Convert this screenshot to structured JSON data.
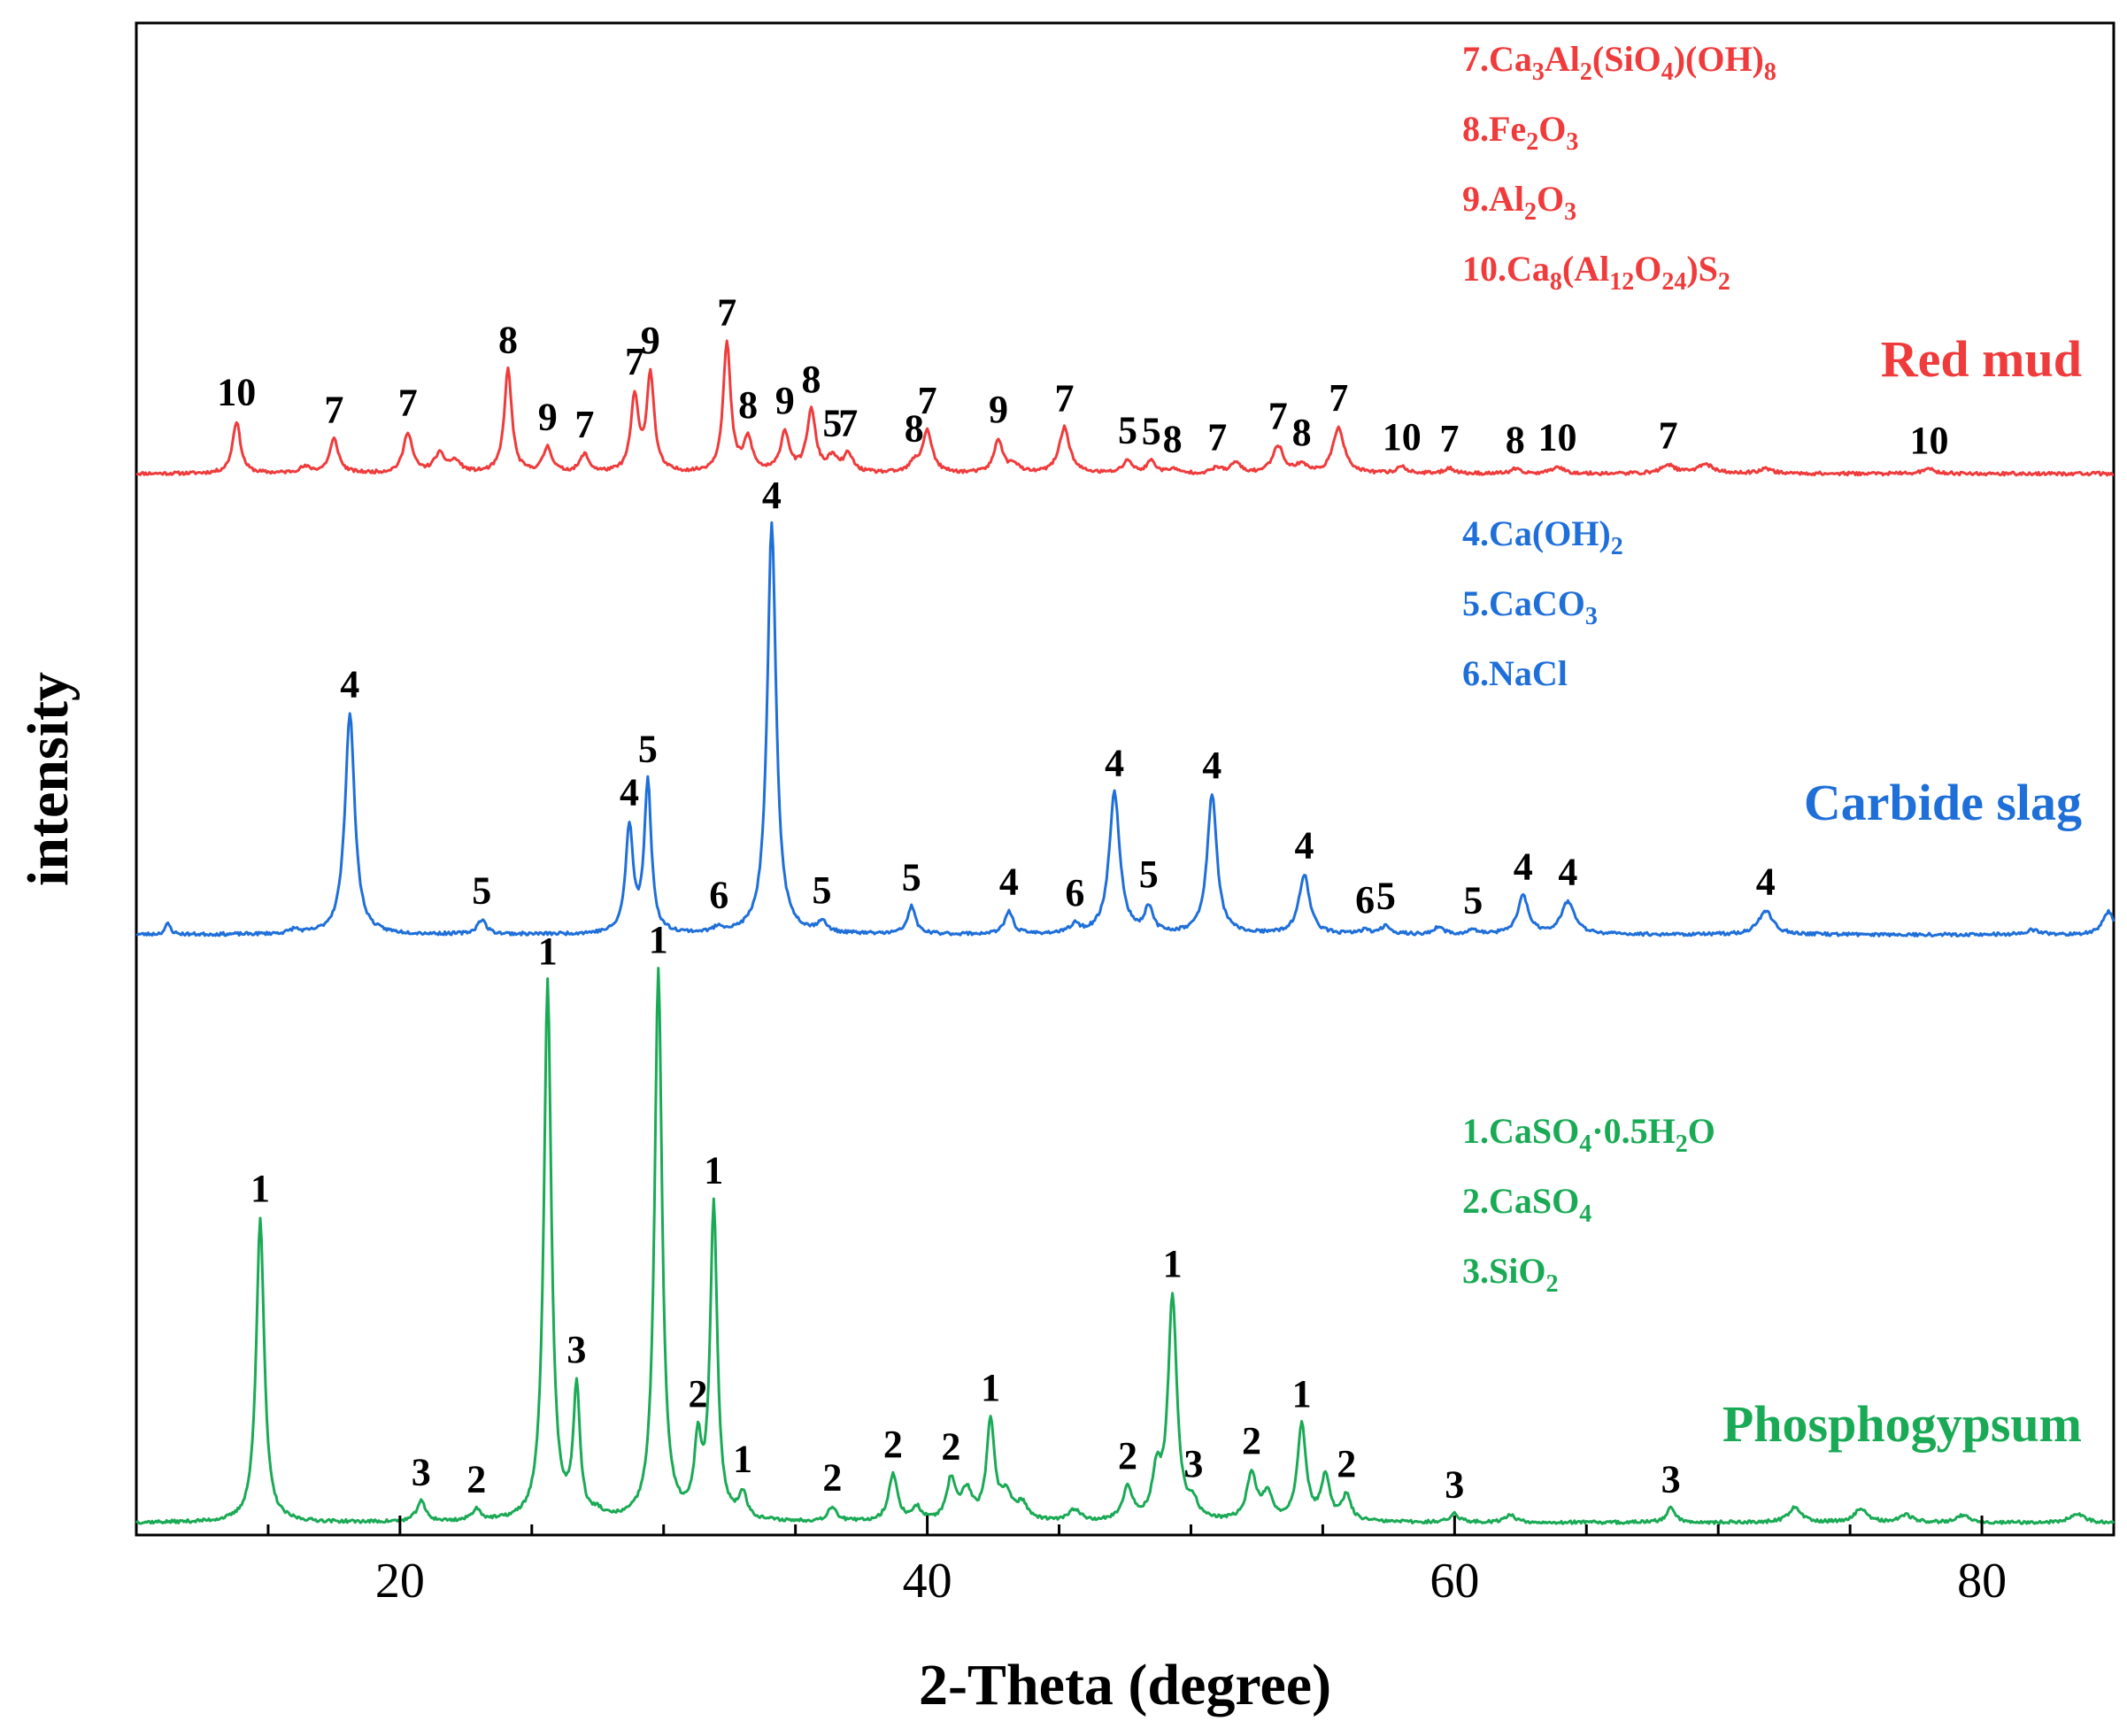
{
  "chart_data": {
    "type": "line",
    "xlabel": "2-Theta (degree)",
    "ylabel": "intensity",
    "xlim": [
      10,
      85
    ],
    "ylim": [
      0,
      2.0
    ],
    "x_ticks": [
      20,
      40,
      60,
      80
    ],
    "grid": false,
    "series": [
      {
        "name": "Red mud",
        "color": "#ef3b3b",
        "baseline": 1.445,
        "noise_seed": 11,
        "peaks": [
          {
            "x": 13.8,
            "h": 0.072,
            "w": 0.18,
            "label": "10"
          },
          {
            "x": 16.4,
            "h": 0.008,
            "w": 0.3
          },
          {
            "x": 17.5,
            "h": 0.047,
            "w": 0.2,
            "label": "7"
          },
          {
            "x": 20.3,
            "h": 0.056,
            "w": 0.2,
            "label": "7"
          },
          {
            "x": 21.5,
            "h": 0.025,
            "w": 0.25
          },
          {
            "x": 22.1,
            "h": 0.015,
            "w": 0.25
          },
          {
            "x": 24.1,
            "h": 0.143,
            "w": 0.17,
            "label": "8"
          },
          {
            "x": 25.6,
            "h": 0.035,
            "w": 0.2,
            "label": "9"
          },
          {
            "x": 27.0,
            "h": 0.025,
            "w": 0.2,
            "label": "7"
          },
          {
            "x": 28.9,
            "h": 0.103,
            "w": 0.17,
            "label": "7"
          },
          {
            "x": 29.5,
            "h": 0.135,
            "w": 0.17,
            "label": "9"
          },
          {
            "x": 32.4,
            "h": 0.178,
            "w": 0.17,
            "label": "7"
          },
          {
            "x": 33.2,
            "h": 0.045,
            "w": 0.2,
            "label": "8"
          },
          {
            "x": 34.6,
            "h": 0.055,
            "w": 0.2,
            "label": "9"
          },
          {
            "x": 35.6,
            "h": 0.085,
            "w": 0.2,
            "label": "8"
          },
          {
            "x": 36.4,
            "h": 0.02,
            "w": 0.2,
            "label": "5"
          },
          {
            "x": 37.0,
            "h": 0.025,
            "w": 0.22,
            "label": "7"
          },
          {
            "x": 39.5,
            "h": 0.012,
            "w": 0.2,
            "label": "8"
          },
          {
            "x": 40.0,
            "h": 0.058,
            "w": 0.22,
            "label": "7"
          },
          {
            "x": 42.7,
            "h": 0.046,
            "w": 0.2,
            "label": "9"
          },
          {
            "x": 43.3,
            "h": 0.012,
            "w": 0.2
          },
          {
            "x": 45.2,
            "h": 0.063,
            "w": 0.24,
            "label": "7"
          },
          {
            "x": 47.6,
            "h": 0.018,
            "w": 0.2,
            "label": "5"
          },
          {
            "x": 48.5,
            "h": 0.017,
            "w": 0.2,
            "label": "5"
          },
          {
            "x": 49.3,
            "h": 0.006,
            "w": 0.2,
            "label": "8"
          },
          {
            "x": 51.0,
            "h": 0.008,
            "w": 0.2,
            "label": "7"
          },
          {
            "x": 51.7,
            "h": 0.015,
            "w": 0.2
          },
          {
            "x": 53.3,
            "h": 0.038,
            "w": 0.25,
            "label": "7"
          },
          {
            "x": 54.2,
            "h": 0.012,
            "w": 0.22,
            "label": "8"
          },
          {
            "x": 55.6,
            "h": 0.064,
            "w": 0.25,
            "label": "7"
          },
          {
            "x": 58.0,
            "h": 0.01,
            "w": 0.2,
            "label": "10"
          },
          {
            "x": 59.8,
            "h": 0.008,
            "w": 0.2,
            "label": "7"
          },
          {
            "x": 62.3,
            "h": 0.006,
            "w": 0.2,
            "label": "8"
          },
          {
            "x": 63.9,
            "h": 0.01,
            "w": 0.25,
            "label": "10"
          },
          {
            "x": 68.1,
            "h": 0.012,
            "w": 0.3,
            "label": "7"
          },
          {
            "x": 69.5,
            "h": 0.013,
            "w": 0.35
          },
          {
            "x": 71.8,
            "h": 0.007,
            "w": 0.3
          },
          {
            "x": 78.0,
            "h": 0.006,
            "w": 0.3,
            "label": "10"
          }
        ]
      },
      {
        "name": "Carbide slag",
        "color": "#1f6fd9",
        "baseline": 0.81,
        "noise_seed": 23,
        "peaks": [
          {
            "x": 11.2,
            "h": 0.015,
            "w": 0.12
          },
          {
            "x": 16.0,
            "h": 0.006,
            "w": 0.2
          },
          {
            "x": 18.1,
            "h": 0.305,
            "w": 0.22,
            "label": "4"
          },
          {
            "x": 23.1,
            "h": 0.02,
            "w": 0.2,
            "label": "5"
          },
          {
            "x": 28.7,
            "h": 0.145,
            "w": 0.17,
            "label": "4"
          },
          {
            "x": 29.4,
            "h": 0.207,
            "w": 0.16,
            "label": "5"
          },
          {
            "x": 32.1,
            "h": 0.008,
            "w": 0.2,
            "label": "6"
          },
          {
            "x": 34.1,
            "h": 0.565,
            "w": 0.2,
            "label": "4"
          },
          {
            "x": 36.0,
            "h": 0.015,
            "w": 0.2,
            "label": "5"
          },
          {
            "x": 39.4,
            "h": 0.038,
            "w": 0.18,
            "label": "5"
          },
          {
            "x": 43.1,
            "h": 0.032,
            "w": 0.18,
            "label": "4"
          },
          {
            "x": 45.6,
            "h": 0.012,
            "w": 0.2,
            "label": "6"
          },
          {
            "x": 47.1,
            "h": 0.195,
            "w": 0.24,
            "label": "4"
          },
          {
            "x": 48.4,
            "h": 0.035,
            "w": 0.18,
            "label": "5"
          },
          {
            "x": 50.8,
            "h": 0.192,
            "w": 0.22,
            "label": "4"
          },
          {
            "x": 54.3,
            "h": 0.082,
            "w": 0.24,
            "label": "4"
          },
          {
            "x": 56.6,
            "h": 0.006,
            "w": 0.2,
            "label": "6"
          },
          {
            "x": 57.4,
            "h": 0.012,
            "w": 0.2,
            "label": "5"
          },
          {
            "x": 59.4,
            "h": 0.01,
            "w": 0.2
          },
          {
            "x": 60.7,
            "h": 0.006,
            "w": 0.2,
            "label": "5"
          },
          {
            "x": 62.6,
            "h": 0.052,
            "w": 0.25,
            "label": "4"
          },
          {
            "x": 64.3,
            "h": 0.045,
            "w": 0.3,
            "label": "4"
          },
          {
            "x": 71.8,
            "h": 0.033,
            "w": 0.32,
            "label": "4"
          },
          {
            "x": 81.9,
            "h": 0.006,
            "w": 0.3
          },
          {
            "x": 84.8,
            "h": 0.032,
            "w": 0.25
          }
        ]
      },
      {
        "name": "Phosphogypsum",
        "color": "#1aaa55",
        "baseline": 0.0,
        "noise_seed": 37,
        "peaks": [
          {
            "x": 14.7,
            "h": 0.42,
            "w": 0.18,
            "label": "1"
          },
          {
            "x": 20.8,
            "h": 0.028,
            "w": 0.2,
            "label": "3"
          },
          {
            "x": 22.9,
            "h": 0.016,
            "w": 0.2,
            "label": "2"
          },
          {
            "x": 25.6,
            "h": 0.742,
            "w": 0.17,
            "label": "1"
          },
          {
            "x": 26.7,
            "h": 0.178,
            "w": 0.15,
            "label": "3"
          },
          {
            "x": 27.5,
            "h": 0.008,
            "w": 0.2
          },
          {
            "x": 29.8,
            "h": 0.758,
            "w": 0.17,
            "label": "1"
          },
          {
            "x": 31.3,
            "h": 0.098,
            "w": 0.16,
            "label": "2"
          },
          {
            "x": 31.9,
            "h": 0.432,
            "w": 0.16,
            "label": "1"
          },
          {
            "x": 33.0,
            "h": 0.035,
            "w": 0.18,
            "label": "1"
          },
          {
            "x": 36.4,
            "h": 0.02,
            "w": 0.2,
            "label": "2"
          },
          {
            "x": 38.7,
            "h": 0.065,
            "w": 0.2,
            "label": "2"
          },
          {
            "x": 39.6,
            "h": 0.018,
            "w": 0.2
          },
          {
            "x": 40.9,
            "h": 0.055,
            "w": 0.2,
            "label": "2"
          },
          {
            "x": 41.5,
            "h": 0.04,
            "w": 0.25
          },
          {
            "x": 42.4,
            "h": 0.135,
            "w": 0.18,
            "label": "1"
          },
          {
            "x": 43.0,
            "h": 0.035,
            "w": 0.25
          },
          {
            "x": 43.6,
            "h": 0.022,
            "w": 0.25
          },
          {
            "x": 45.6,
            "h": 0.016,
            "w": 0.25
          },
          {
            "x": 47.6,
            "h": 0.045,
            "w": 0.22,
            "label": "2"
          },
          {
            "x": 48.7,
            "h": 0.06,
            "w": 0.2
          },
          {
            "x": 49.3,
            "h": 0.308,
            "w": 0.2,
            "label": "1"
          },
          {
            "x": 50.1,
            "h": 0.02,
            "w": 0.2,
            "label": "3"
          },
          {
            "x": 52.3,
            "h": 0.065,
            "w": 0.22,
            "label": "2"
          },
          {
            "x": 52.9,
            "h": 0.035,
            "w": 0.22
          },
          {
            "x": 54.2,
            "h": 0.132,
            "w": 0.2,
            "label": "1"
          },
          {
            "x": 55.1,
            "h": 0.06,
            "w": 0.2
          },
          {
            "x": 55.9,
            "h": 0.035,
            "w": 0.2,
            "label": "2"
          },
          {
            "x": 60.0,
            "h": 0.012,
            "w": 0.2,
            "label": "3"
          },
          {
            "x": 62.1,
            "h": 0.01,
            "w": 0.25
          },
          {
            "x": 68.2,
            "h": 0.02,
            "w": 0.2,
            "label": "3"
          },
          {
            "x": 72.9,
            "h": 0.02,
            "w": 0.3
          },
          {
            "x": 75.4,
            "h": 0.018,
            "w": 0.3
          },
          {
            "x": 77.1,
            "h": 0.01,
            "w": 0.3
          },
          {
            "x": 79.3,
            "h": 0.01,
            "w": 0.3
          },
          {
            "x": 83.6,
            "h": 0.013,
            "w": 0.3
          }
        ]
      }
    ],
    "legends": [
      {
        "series": "Red mud",
        "entries": [
          {
            "num": "7.",
            "parts": [
              [
                "Ca",
                ""
              ],
              [
                "3",
                "sub"
              ],
              [
                "Al",
                ""
              ],
              [
                "2",
                "sub"
              ],
              [
                "(SiO",
                ""
              ],
              [
                "4",
                "sub"
              ],
              [
                ")(OH)",
                ""
              ],
              [
                "8",
                "sub"
              ]
            ]
          },
          {
            "num": "8.",
            "parts": [
              [
                "Fe",
                ""
              ],
              [
                "2",
                "sub"
              ],
              [
                "O",
                ""
              ],
              [
                "3",
                "sub"
              ]
            ]
          },
          {
            "num": "9.",
            "parts": [
              [
                "Al",
                ""
              ],
              [
                "2",
                "sub"
              ],
              [
                "O",
                ""
              ],
              [
                "3",
                "sub"
              ]
            ]
          },
          {
            "num": "10.",
            "parts": [
              [
                "Ca",
                ""
              ],
              [
                "8",
                "sub"
              ],
              [
                "(Al",
                ""
              ],
              [
                "12",
                "sub"
              ],
              [
                "O",
                ""
              ],
              [
                "24",
                "sub"
              ],
              [
                ")S",
                ""
              ],
              [
                "2",
                "sub"
              ]
            ]
          }
        ]
      },
      {
        "series": "Carbide slag",
        "entries": [
          {
            "num": "4.",
            "parts": [
              [
                "Ca(OH)",
                ""
              ],
              [
                "2",
                "sub"
              ]
            ]
          },
          {
            "num": "5.",
            "parts": [
              [
                "CaCO",
                ""
              ],
              [
                "3",
                "sub"
              ]
            ]
          },
          {
            "num": "6.",
            "parts": [
              [
                "NaCl",
                ""
              ]
            ]
          }
        ]
      },
      {
        "series": "Phosphogypsum",
        "entries": [
          {
            "num": "1.",
            "parts": [
              [
                "CaSO",
                ""
              ],
              [
                "4",
                "sub"
              ],
              [
                "·0.5H",
                ""
              ],
              [
                "2",
                "sub"
              ],
              [
                "O",
                ""
              ]
            ]
          },
          {
            "num": "2.",
            "parts": [
              [
                "CaSO",
                ""
              ],
              [
                "4",
                "sub"
              ]
            ]
          },
          {
            "num": "3.",
            "parts": [
              [
                "SiO",
                ""
              ],
              [
                "2",
                "sub"
              ]
            ]
          }
        ]
      }
    ]
  }
}
